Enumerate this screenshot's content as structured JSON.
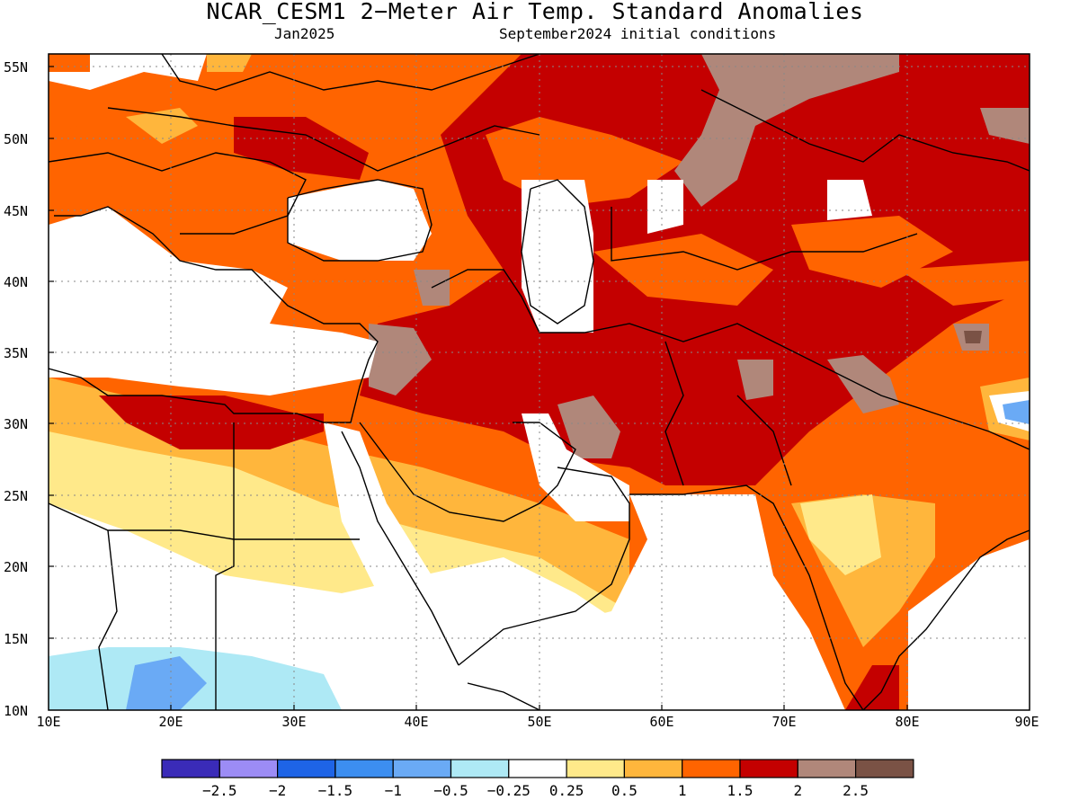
{
  "header": {
    "title": "NCAR_CESM1 2−Meter Air Temp. Standard Anomalies",
    "valid_month": "Jan2025",
    "init": "September2024 initial conditions"
  },
  "axes": {
    "lat_labels": [
      "55N",
      "50N",
      "45N",
      "40N",
      "35N",
      "30N",
      "25N",
      "20N",
      "15N",
      "10N"
    ],
    "lon_labels": [
      "10E",
      "20E",
      "30E",
      "40E",
      "50E",
      "60E",
      "70E",
      "80E",
      "90E"
    ]
  },
  "colorbar": {
    "colors": [
      "#3a2bb8",
      "#9c8cf5",
      "#1e64e6",
      "#3c8ef0",
      "#6aaaf5",
      "#aee9f5",
      "#ffffff",
      "#ffe98a",
      "#ffb63c",
      "#ff6400",
      "#c40000",
      "#b0877a",
      "#7a5245"
    ],
    "labels": [
      "−2.5",
      "−2",
      "−1.5",
      "−1",
      "−0.5",
      "−0.25",
      "0.25",
      "0.5",
      "1",
      "1.5",
      "2",
      "2.5"
    ]
  }
}
